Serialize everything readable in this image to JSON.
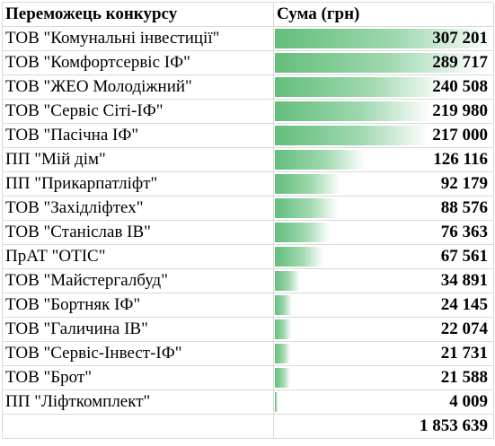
{
  "header": {
    "winner_label": "Переможець конкурсу",
    "sum_label": "Сума (грн)"
  },
  "databar_color": "#63be7b",
  "rows": [
    {
      "name": "ТОВ \"Комунальні інвестиції\"",
      "amount": "307 201",
      "value": 307201
    },
    {
      "name": "ТОВ \"Комфортсервіс ІФ\"",
      "amount": "289 717",
      "value": 289717
    },
    {
      "name": "ТОВ \"ЖЕО Молодіжний\"",
      "amount": "240 508",
      "value": 240508
    },
    {
      "name": "ТОВ \"Сервіс Сіті-ІФ\"",
      "amount": "219 980",
      "value": 219980
    },
    {
      "name": "ТОВ \"Пасічна ІФ\"",
      "amount": "217 000",
      "value": 217000
    },
    {
      "name": "ПП \"Мій дім\"",
      "amount": "126 116",
      "value": 126116
    },
    {
      "name": "ПП \"Прикарпатліфт\"",
      "amount": "92 179",
      "value": 92179
    },
    {
      "name": "ТОВ \"Західліфтех\"",
      "amount": "88 576",
      "value": 88576
    },
    {
      "name": "ТОВ \"Станіслав ІВ\"",
      "amount": "76 363",
      "value": 76363
    },
    {
      "name": "ПрАТ \"ОТІС\"",
      "amount": "67 561",
      "value": 67561
    },
    {
      "name": "ТОВ \"Майстергалбуд\"",
      "amount": "34 891",
      "value": 34891
    },
    {
      "name": "ТОВ \"Бортняк ІФ\"",
      "amount": "24 145",
      "value": 24145
    },
    {
      "name": "ТОВ  \"Галичина ІВ\"",
      "amount": "22 074",
      "value": 22074
    },
    {
      "name": "ТОВ \"Сервіс-Інвест-ІФ\"",
      "amount": "21 731",
      "value": 21731
    },
    {
      "name": "ТОВ \"Брот\"",
      "amount": "21 588",
      "value": 21588
    },
    {
      "name": "ПП \"Ліфткомплект\"",
      "amount": "4 009",
      "value": 4009
    }
  ],
  "total": {
    "amount": "1 853 639"
  }
}
